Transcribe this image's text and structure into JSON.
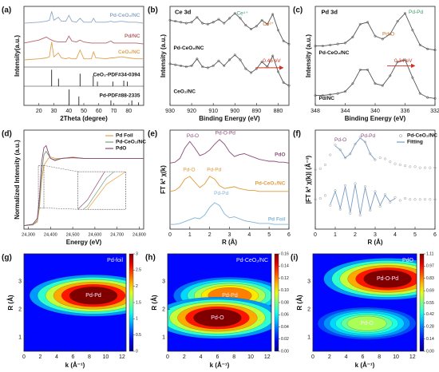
{
  "chart_data": [
    {
      "type": "line",
      "label": "(a)",
      "xlabel": "2Theta (degree)",
      "ylabel": "Intensity(a.u.)",
      "xlim": [
        10,
        90
      ],
      "ylim": [
        0,
        10
      ],
      "xticks": [
        20,
        30,
        40,
        50,
        60,
        70,
        80
      ],
      "yticks": [],
      "x": [
        10,
        20,
        25,
        27,
        28.5,
        30,
        33,
        35,
        38,
        40,
        42,
        45,
        47.5,
        50,
        55,
        56.5,
        58,
        65,
        68,
        70,
        75,
        80,
        85,
        90
      ],
      "series": [
        {
          "name": "Pd-CeO₂/NC",
          "color": "#8fa8c8",
          "values": [
            8.3,
            8.4,
            8.5,
            8.6,
            9.5,
            8.6,
            8.9,
            8.5,
            8.5,
            9.1,
            8.5,
            8.4,
            8.8,
            8.4,
            8.4,
            8.8,
            8.4,
            8.4,
            8.5,
            8.4,
            8.5,
            8.4,
            8.4,
            8.3
          ]
        },
        {
          "name": "Pd/NC",
          "color": "#b5656b",
          "values": [
            6.3,
            6.6,
            6.9,
            6.7,
            6.6,
            6.5,
            6.4,
            6.4,
            6.4,
            7.0,
            6.5,
            6.4,
            6.6,
            6.4,
            6.3,
            6.3,
            6.3,
            6.3,
            6.5,
            6.3,
            6.3,
            6.3,
            6.3,
            6.2
          ]
        },
        {
          "name": "CeO₂/NC",
          "color": "#e0a050",
          "values": [
            4.6,
            4.7,
            4.8,
            4.9,
            6.4,
            4.9,
            5.3,
            4.8,
            4.7,
            4.8,
            4.7,
            4.7,
            5.6,
            4.7,
            4.7,
            5.4,
            4.8,
            4.7,
            4.8,
            4.8,
            4.9,
            4.8,
            4.7,
            4.7
          ]
        },
        {
          "name": "CeO₂-PDF#34-0394",
          "color": "#222222",
          "style": "stem",
          "x": [
            28.5,
            33.1,
            47.5,
            56.3,
            59.1,
            69.4,
            76.7,
            79.1
          ],
          "values": [
            3.6,
            2.7,
            3.2,
            3.0,
            2.4,
            2.4,
            2.5,
            2.4
          ]
        },
        {
          "name": "Pd-PDF#88-2335",
          "color": "#222222",
          "style": "stem",
          "x": [
            40.1,
            46.7,
            68.1,
            82.1,
            86.6
          ],
          "values": [
            1.6,
            0.9,
            0.5,
            0.5,
            0.3
          ]
        }
      ],
      "annotations": []
    },
    {
      "type": "line",
      "label": "(b)",
      "xlabel": "Binding Energy (eV)",
      "ylabel": "Intensity (a.u.)",
      "xlim": [
        930,
        875
      ],
      "ylim": [
        0,
        10
      ],
      "xticks": [
        930,
        920,
        910,
        900,
        890,
        880
      ],
      "yticks": [],
      "x": [
        930,
        927.5,
        925,
        922.5,
        920,
        917.5,
        915,
        912.5,
        910,
        907.5,
        905,
        902.5,
        900,
        897.5,
        895,
        892.5,
        890,
        887.5,
        885,
        882.5,
        880,
        877.5,
        875
      ],
      "series": [
        {
          "name": "Pd-CeO₂/NC",
          "color": "#555555",
          "style": "dotline",
          "values": [
            8.6,
            8.5,
            8.4,
            8.3,
            8.4,
            8.9,
            8.3,
            8.2,
            8.4,
            8.7,
            8.3,
            8.8,
            9.3,
            8.8,
            8.1,
            7.7,
            8.0,
            8.6,
            8.2,
            9.2,
            7.6,
            6.5,
            6.2
          ]
        },
        {
          "name": "CeO₂/NC",
          "color": "#555555",
          "style": "dotline",
          "values": [
            4.2,
            4.1,
            4.0,
            3.9,
            4.0,
            4.7,
            3.9,
            3.8,
            4.0,
            4.5,
            4.0,
            4.6,
            5.1,
            4.6,
            3.7,
            3.3,
            3.7,
            4.4,
            3.9,
            5.0,
            3.4,
            2.3,
            2.0
          ]
        }
      ],
      "annotations": [
        "Ce 3d",
        "Ce⁴⁺",
        "Ce³⁺",
        "0.46 eV"
      ]
    },
    {
      "type": "line",
      "label": "(c)",
      "xlabel": "Binding Energy (eV)",
      "ylabel": "Intensity (a.u.)",
      "xlim": [
        348,
        332
      ],
      "ylim": [
        0,
        10
      ],
      "xticks": [
        348,
        344,
        340,
        336,
        332
      ],
      "yticks": [],
      "x": [
        348,
        347,
        346,
        345,
        344,
        343,
        342,
        341,
        340,
        339,
        338,
        337,
        336,
        335,
        334,
        333,
        332
      ],
      "series": [
        {
          "name": "Pd-CeO₂/NC",
          "color": "#555555",
          "style": "dotline",
          "values": [
            6.0,
            6.0,
            6.1,
            6.2,
            6.3,
            6.9,
            8.2,
            8.4,
            7.0,
            6.7,
            7.2,
            8.5,
            9.3,
            7.6,
            6.1,
            5.7,
            5.6
          ]
        },
        {
          "name": "Pd/NC",
          "color": "#555555",
          "style": "dotline",
          "values": [
            1.0,
            1.0,
            1.1,
            1.2,
            1.4,
            2.2,
            3.6,
            3.6,
            2.2,
            2.0,
            3.0,
            4.4,
            4.6,
            2.8,
            1.2,
            0.8,
            0.7
          ]
        }
      ],
      "annotations": [
        "Pd 3d",
        "Pd-Pd",
        "Pd-O",
        "0.34 eV"
      ]
    },
    {
      "type": "line",
      "label": "(d)",
      "xlabel": "Energy (eV)",
      "ylabel": "Normalized Intensity (a.u.)",
      "xlim": [
        24280,
        24820
      ],
      "ylim": [
        0,
        1.4
      ],
      "xticks": [
        {
          "value": 24300,
          "label": "24,300"
        },
        {
          "value": 24400,
          "label": "24,400"
        },
        {
          "value": 24500,
          "label": "24,500"
        },
        {
          "value": 24600,
          "label": "24,600"
        },
        {
          "value": 24700,
          "label": "24,700"
        },
        {
          "value": 24800,
          "label": "24,800"
        }
      ],
      "yticks": [],
      "legend": "upper right",
      "inset": {
        "xlim": [
          24345,
          24370
        ],
        "ylim": [
          0.3,
          0.9
        ]
      },
      "x": [
        24280,
        24320,
        24340,
        24350,
        24360,
        24370,
        24380,
        24390,
        24400,
        24420,
        24450,
        24500,
        24550,
        24600,
        24700,
        24820
      ],
      "series": [
        {
          "name": "Pd Foil",
          "color": "#e8a04c",
          "values": [
            0.05,
            0.06,
            0.1,
            0.3,
            0.7,
            0.9,
            0.95,
            1.0,
            1.02,
            1.0,
            1.0,
            1.02,
            1.0,
            1.0,
            1.0,
            1.0
          ]
        },
        {
          "name": "Pd-CeO₂/NC",
          "color": "#7aa07a",
          "values": [
            0.05,
            0.06,
            0.12,
            0.35,
            0.8,
            1.05,
            1.1,
            1.05,
            1.0,
            0.98,
            1.0,
            1.01,
            1.0,
            1.0,
            1.0,
            1.0
          ]
        },
        {
          "name": "PdO",
          "color": "#8b4d7a",
          "values": [
            0.05,
            0.07,
            0.15,
            0.45,
            0.95,
            1.15,
            1.18,
            1.08,
            1.0,
            0.97,
            1.0,
            1.01,
            1.0,
            1.0,
            1.0,
            1.0
          ]
        }
      ],
      "annotations": []
    },
    {
      "type": "line",
      "label": "(e)",
      "xlabel": "R (Å)",
      "ylabel": "FT k² χ(k)",
      "xlim": [
        0,
        6
      ],
      "ylim": [
        0,
        10.5
      ],
      "xticks": [
        0,
        1,
        2,
        3,
        4,
        5,
        6
      ],
      "yticks": [],
      "x": [
        0,
        0.25,
        0.5,
        0.75,
        1,
        1.25,
        1.5,
        1.75,
        2,
        2.25,
        2.5,
        2.75,
        3,
        3.25,
        3.5,
        3.75,
        4,
        4.25,
        4.5,
        4.75,
        5,
        5.25,
        5.5,
        5.75,
        6
      ],
      "series": [
        {
          "name": "PdO",
          "color": "#8b4d7a",
          "values": [
            7,
            7.1,
            7.5,
            8.6,
            9.3,
            8.6,
            7.8,
            8.0,
            8.4,
            9.0,
            9.5,
            9.0,
            8.2,
            7.7,
            7.9,
            8.0,
            7.8,
            7.6,
            7.4,
            7.3,
            7.2,
            7.2,
            7.1,
            7.1,
            7.0
          ]
        },
        {
          "name": "Pd-CeO₂/NC",
          "color": "#e09a3a",
          "values": [
            4,
            4.1,
            4.5,
            5.3,
            5.6,
            5.0,
            4.4,
            4.8,
            5.6,
            5.3,
            4.6,
            4.3,
            4.4,
            4.5,
            4.3,
            4.2,
            4.1,
            4.1,
            4.0,
            4.0,
            4.0,
            4.0,
            4.0,
            4.0,
            4.0
          ]
        },
        {
          "name": "Pd Foil",
          "color": "#7fb3d5",
          "values": [
            0.5,
            0.5,
            0.6,
            0.8,
            1.0,
            1.2,
            1.1,
            1.5,
            2.3,
            2.8,
            2.5,
            1.6,
            1.2,
            1.3,
            1.1,
            0.9,
            0.8,
            0.7,
            0.6,
            0.6,
            0.6,
            0.5,
            0.5,
            0.5,
            0.5
          ]
        }
      ],
      "annotations": [
        "Pd-O",
        "Pd-O-Pd",
        "Pd-O",
        "Pd-Pd",
        "Pd-Pd"
      ]
    },
    {
      "type": "line",
      "label": "(f)",
      "xlabel": "R (Å)",
      "ylabel": "|FT k² χ(k)| (Å⁻³)",
      "xlim": [
        0,
        6
      ],
      "ylim": [
        0,
        10
      ],
      "xticks": [
        0,
        1,
        2,
        3,
        4,
        5,
        6
      ],
      "yticks": [],
      "legend": "upper right",
      "x": [
        0,
        0.25,
        0.5,
        0.75,
        1,
        1.25,
        1.5,
        1.75,
        2,
        2.25,
        2.5,
        2.75,
        3,
        3.25,
        3.5,
        3.75,
        4,
        4.25,
        4.5,
        4.75,
        5,
        5.25,
        5.5,
        5.75,
        6
      ],
      "series": [
        {
          "name": "Pd-CeO₂/NC",
          "color": "#999999",
          "style": "dots",
          "values": [
            6.0,
            6.1,
            6.5,
            7.5,
            8.5,
            8.0,
            7.2,
            7.6,
            8.6,
            9.3,
            8.8,
            7.6,
            7.0,
            7.2,
            7.1,
            6.8,
            6.6,
            6.5,
            6.4,
            6.3,
            6.3,
            6.2,
            6.2,
            6.2,
            6.2
          ]
        },
        {
          "name": "Fitting",
          "color": "#7a9cc0",
          "values": [
            null,
            null,
            null,
            null,
            8.4,
            8.0,
            7.2,
            7.6,
            8.6,
            9.2,
            8.8,
            7.6,
            7.0,
            null,
            null,
            null,
            null,
            null,
            null,
            null,
            null,
            null,
            null,
            null,
            null
          ]
        },
        {
          "color": "#999999",
          "style": "dots",
          "values": [
            3.0,
            3.1,
            3.4,
            2.4,
            3.9,
            2.0,
            4.4,
            1.6,
            4.6,
            1.4,
            4.3,
            1.9,
            3.8,
            2.3,
            3.5,
            2.7,
            3.2,
            2.9,
            3.1,
            3.0,
            3.0,
            3.0,
            3.0,
            3.0,
            3.0
          ]
        },
        {
          "color": "#7a9cc0",
          "values": [
            null,
            null,
            null,
            2.5,
            3.8,
            2.1,
            4.3,
            1.7,
            4.5,
            1.5,
            4.2,
            2.0,
            3.7,
            2.4,
            3.4,
            2.8,
            3.1,
            null,
            null,
            null,
            null,
            null,
            null,
            null,
            null
          ]
        }
      ],
      "annotations": [
        "Pd-O",
        "Pd-Pd"
      ]
    },
    {
      "type": "heatmap",
      "label": "(g)",
      "title": "Pd-foil",
      "xlabel": "k (Å⁻¹)",
      "ylabel": "R (Å)",
      "xlim": [
        0,
        12.5
      ],
      "ylim": [
        0.5,
        4
      ],
      "xticks": [
        0,
        2,
        4,
        6,
        8,
        10,
        12
      ],
      "yticks": [
        1,
        2,
        3
      ],
      "zlim": [
        0,
        3
      ],
      "zticks": [
        0,
        0.5,
        1,
        1.5,
        2,
        2.5,
        3
      ],
      "peaks": [
        {
          "name": "Pd-Pd",
          "k": 8.5,
          "R": 2.5,
          "value": 3
        }
      ]
    },
    {
      "type": "heatmap",
      "label": "(h)",
      "title": "Pd-CeO₂/NC",
      "xlabel": "k (Å⁻¹)",
      "ylabel": "R (Å)",
      "xlim": [
        0,
        12.5
      ],
      "ylim": [
        0.5,
        4
      ],
      "xticks": [
        0,
        2,
        4,
        6,
        8,
        10,
        12
      ],
      "yticks": [
        1,
        2,
        3
      ],
      "zlim": [
        0,
        0.16
      ],
      "zticks": [
        {
          "value": 0,
          "label": "0.00"
        },
        {
          "value": 0.02,
          "label": "0.02"
        },
        {
          "value": 0.04,
          "label": "0.04"
        },
        {
          "value": 0.06,
          "label": "0.06"
        },
        {
          "value": 0.08,
          "label": "0.08"
        },
        {
          "value": 0.1,
          "label": "0.10"
        },
        {
          "value": 0.12,
          "label": "0.12"
        },
        {
          "value": 0.14,
          "label": "0.14"
        },
        {
          "value": 0.16,
          "label": "0.16"
        }
      ],
      "peaks": [
        {
          "name": "Pd-Pd",
          "k": 7.5,
          "R": 2.5,
          "value": 0.12
        },
        {
          "name": "Pd-O",
          "k": 6,
          "R": 1.7,
          "value": 0.16
        }
      ]
    },
    {
      "type": "heatmap",
      "label": "(i)",
      "title": "PdO",
      "xlabel": "k (Å⁻¹)",
      "ylabel": "R (Å)",
      "xlim": [
        0,
        12.5
      ],
      "ylim": [
        0.5,
        4
      ],
      "xticks": [
        0,
        2,
        4,
        6,
        8,
        10,
        12
      ],
      "yticks": [
        1,
        2,
        3
      ],
      "zlim": [
        0,
        1.11
      ],
      "zticks": [
        {
          "value": 0,
          "label": "0.00"
        },
        {
          "value": 0.14,
          "label": "0.14"
        },
        {
          "value": 0.28,
          "label": "0.28"
        },
        {
          "value": 0.42,
          "label": "0.42"
        },
        {
          "value": 0.55,
          "label": "0.55"
        },
        {
          "value": 0.69,
          "label": "0.69"
        },
        {
          "value": 0.83,
          "label": "0.83"
        },
        {
          "value": 0.97,
          "label": "0.97"
        },
        {
          "value": 1.11,
          "label": "1.11"
        }
      ],
      "peaks": [
        {
          "name": "Pd-O-Pd",
          "k": 9,
          "R": 3.1,
          "value": 1.11
        },
        {
          "name": "Pd-O",
          "k": 6.5,
          "R": 1.5,
          "value": 0.6
        }
      ]
    }
  ]
}
